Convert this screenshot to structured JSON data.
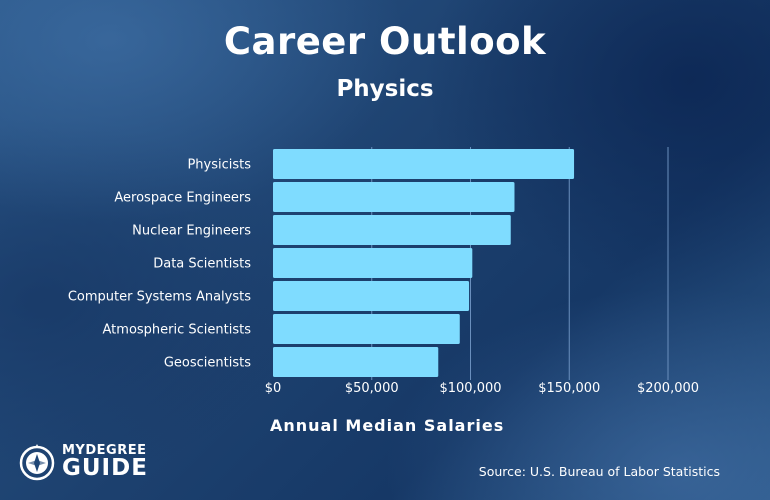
{
  "header": {
    "title": "Career Outlook",
    "subtitle": "Physics"
  },
  "chart_data": {
    "type": "bar",
    "orientation": "horizontal",
    "title": "Career Outlook",
    "subtitle": "Physics",
    "xlabel": "Annual Median Salaries",
    "ylabel": "",
    "categories": [
      "Physicists",
      "Aerospace Engineers",
      "Nuclear Engineers",
      "Data Scientists",
      "Computer Systems Analysts",
      "Atmospheric Scientists",
      "Geoscientists"
    ],
    "values": [
      152430,
      122270,
      120380,
      100910,
      99270,
      94570,
      83680
    ],
    "xlim": [
      0,
      200000
    ],
    "xticks": [
      0,
      50000,
      100000,
      150000,
      200000
    ],
    "xtick_labels": [
      "$0",
      "$50,000",
      "$100,000",
      "$150,000",
      "$200,000"
    ],
    "grid": true,
    "legend": "none",
    "bar_color": "#7fdcff",
    "grid_color": "#6a8fbd"
  },
  "footer": {
    "source": "Source: U.S. Bureau of Labor Statistics",
    "logo_top": "MYDEGREE",
    "logo_bottom": "GUIDE"
  }
}
